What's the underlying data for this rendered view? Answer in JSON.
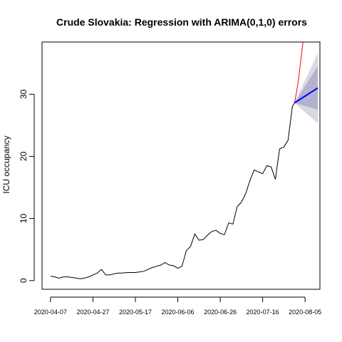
{
  "chart_data": {
    "type": "line",
    "title": "Crude Slovakia: Regression with ARIMA(0,1,0) errors",
    "ylabel": "ICU occupancy",
    "xlabel": "",
    "x_ticks": [
      "2020-04-07",
      "2020-04-27",
      "2020-05-17",
      "2020-06-06",
      "2020-06-26",
      "2020-07-16",
      "2020-08-05"
    ],
    "y_ticks": [
      0,
      10,
      20,
      30
    ],
    "xlim": [
      "2020-04-03",
      "2020-08-12"
    ],
    "ylim": [
      -1.4,
      38.4
    ],
    "grid": false,
    "observed": {
      "x": [
        "2020-04-07",
        "2020-04-09",
        "2020-04-11",
        "2020-04-13",
        "2020-04-15",
        "2020-04-17",
        "2020-04-19",
        "2020-04-21",
        "2020-04-23",
        "2020-04-25",
        "2020-04-27",
        "2020-04-29",
        "2020-05-01",
        "2020-05-03",
        "2020-05-05",
        "2020-05-07",
        "2020-05-09",
        "2020-05-11",
        "2020-05-13",
        "2020-05-15",
        "2020-05-17",
        "2020-05-19",
        "2020-05-21",
        "2020-05-23",
        "2020-05-25",
        "2020-05-27",
        "2020-05-29",
        "2020-05-31",
        "2020-06-02",
        "2020-06-04",
        "2020-06-06",
        "2020-06-08",
        "2020-06-10",
        "2020-06-12",
        "2020-06-14",
        "2020-06-16",
        "2020-06-18",
        "2020-06-20",
        "2020-06-22",
        "2020-06-24",
        "2020-06-26",
        "2020-06-28",
        "2020-06-30",
        "2020-07-02",
        "2020-07-04",
        "2020-07-06",
        "2020-07-08",
        "2020-07-10",
        "2020-07-12",
        "2020-07-14",
        "2020-07-16",
        "2020-07-18",
        "2020-07-20",
        "2020-07-22",
        "2020-07-24",
        "2020-07-26",
        "2020-07-28",
        "2020-07-30",
        "2020-07-31"
      ],
      "y": [
        0.7,
        0.6,
        0.4,
        0.6,
        0.6,
        0.5,
        0.4,
        0.3,
        0.4,
        0.6,
        0.9,
        1.2,
        1.8,
        0.9,
        0.9,
        1.1,
        1.2,
        1.2,
        1.3,
        1.3,
        1.3,
        1.4,
        1.5,
        1.8,
        2.1,
        2.3,
        2.5,
        2.9,
        2.5,
        2.4,
        2.0,
        2.3,
        4.8,
        5.5,
        7.5,
        6.5,
        6.6,
        7.3,
        7.9,
        8.1,
        7.6,
        7.4,
        9.3,
        9.1,
        11.9,
        12.6,
        14.0,
        16.1,
        17.8,
        17.5,
        17.2,
        18.5,
        18.3,
        16.3,
        21.2,
        21.5,
        22.6,
        28.0,
        28.6
      ]
    },
    "fitted": {
      "name": "",
      "color": "#ff0000",
      "x": [
        "2020-07-31",
        "2020-08-01",
        "2020-08-02",
        "2020-08-03",
        "2020-08-04"
      ],
      "y": [
        28.6,
        30.4,
        32.6,
        35.5,
        38.4
      ]
    },
    "forecast": {
      "color": "#0000ff",
      "x": [
        "2020-07-31",
        "2020-08-11"
      ],
      "mean": [
        28.6,
        31.0
      ],
      "lower80": [
        28.6,
        27.5
      ],
      "upper80": [
        28.6,
        34.5
      ],
      "lower95": [
        28.6,
        25.3
      ],
      "upper95": [
        28.6,
        36.6
      ],
      "band80_color": "#b3b3ce",
      "band95_color": "#d9d9e2"
    }
  }
}
